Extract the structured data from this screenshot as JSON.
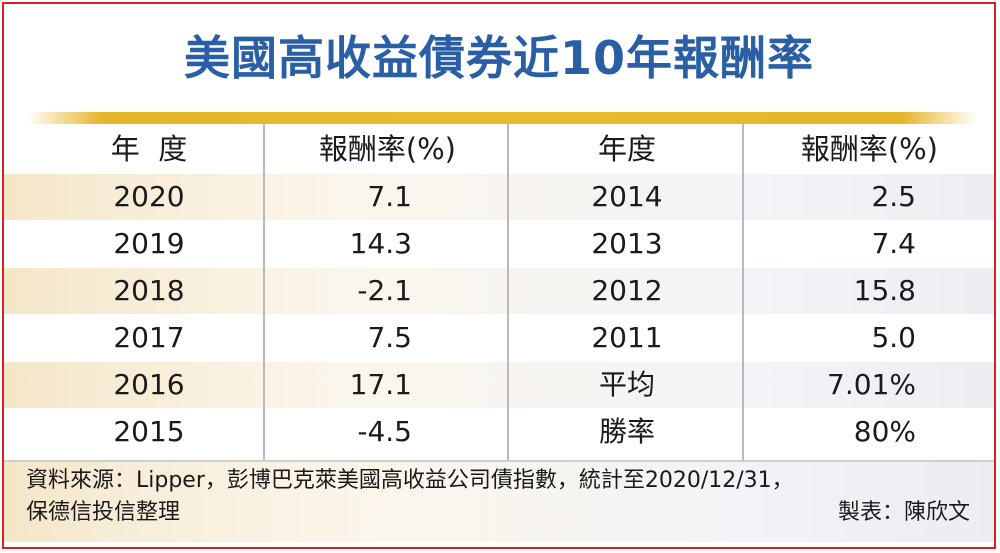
{
  "title": "美國高收益債券近10年報酬率",
  "headers": [
    "年  度",
    "報酬率(%)",
    "年度",
    "報酬率(%)"
  ],
  "rows": [
    {
      "year_left": "2020",
      "ret_left": "7.1",
      "year_right": "2014",
      "ret_right": "2.5"
    },
    {
      "year_left": "2019",
      "ret_left": "14.3",
      "year_right": "2013",
      "ret_right": "7.4"
    },
    {
      "year_left": "2018",
      "ret_left": "-2.1",
      "year_right": "2012",
      "ret_right": "15.8"
    },
    {
      "year_left": "2017",
      "ret_left": "7.5",
      "year_right": "2011",
      "ret_right": "5.0"
    },
    {
      "year_left": "2016",
      "ret_left": "17.1",
      "year_right": "平均",
      "ret_right": "7.01%"
    },
    {
      "year_left": "2015",
      "ret_left": "-4.5",
      "year_right": "勝率",
      "ret_right": "80%"
    }
  ],
  "footer": {
    "source_line1": "資料來源：Lipper，彭博巴克萊美國高收益公司債指數，統計至2020/12/31，",
    "source_line2": "保德信投信整理",
    "maker": "製表：陳欣文"
  },
  "colors": {
    "title": "#2a5fa6",
    "frame": "#d9201f",
    "gold_bar": "#e9bb2e",
    "row_shade": "#f7ecd6"
  }
}
